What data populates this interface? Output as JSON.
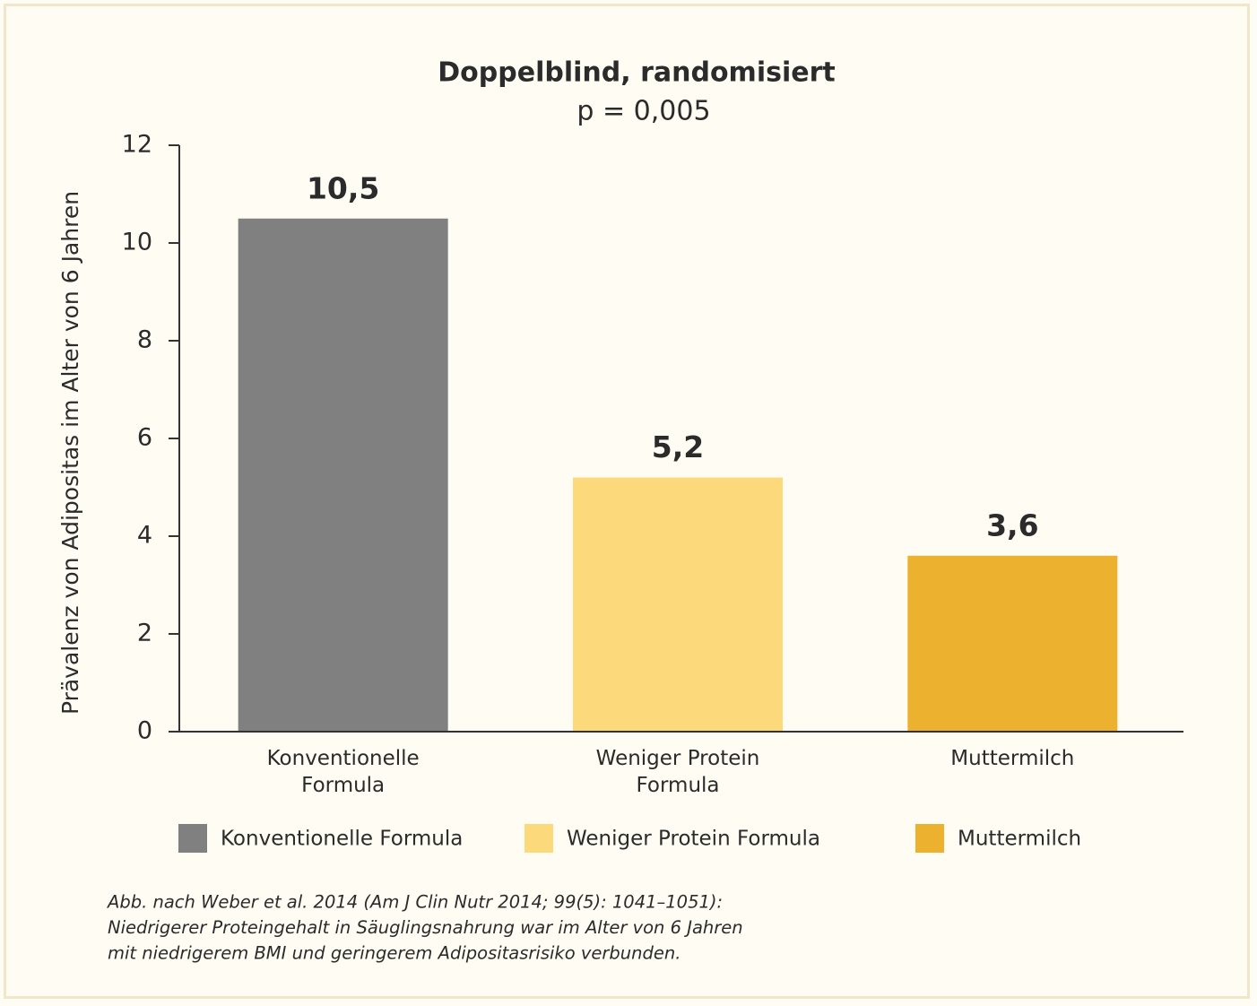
{
  "chart_data": {
    "type": "bar",
    "title": "Doppelblind, randomisiert",
    "subtitle": "p = 0,005",
    "ylabel": "Prävalenz von Adipositas im Alter von 6 Jahren",
    "categories": [
      "Konventionelle Formula",
      "Weniger Protein Formula",
      "Muttermilch"
    ],
    "values": [
      10.5,
      5.2,
      3.6
    ],
    "value_labels": [
      "10,5",
      "5,2",
      "3,6"
    ],
    "colors": [
      "#808080",
      "#fcd97a",
      "#ecb12f"
    ],
    "ylim": [
      0,
      12
    ],
    "yticks": [
      0,
      2,
      4,
      6,
      8,
      10,
      12
    ],
    "grid": false,
    "legend": true,
    "caption": [
      "Abb. nach Weber et al. 2014 (Am J Clin Nutr 2014; 99(5): 1041–1051):",
      "Niedrigerer Proteingehalt in Säuglingsnahrung war im Alter von 6 Jahren",
      "mit niedrigerem BMI und geringerem Adipositasrisiko verbunden."
    ]
  }
}
